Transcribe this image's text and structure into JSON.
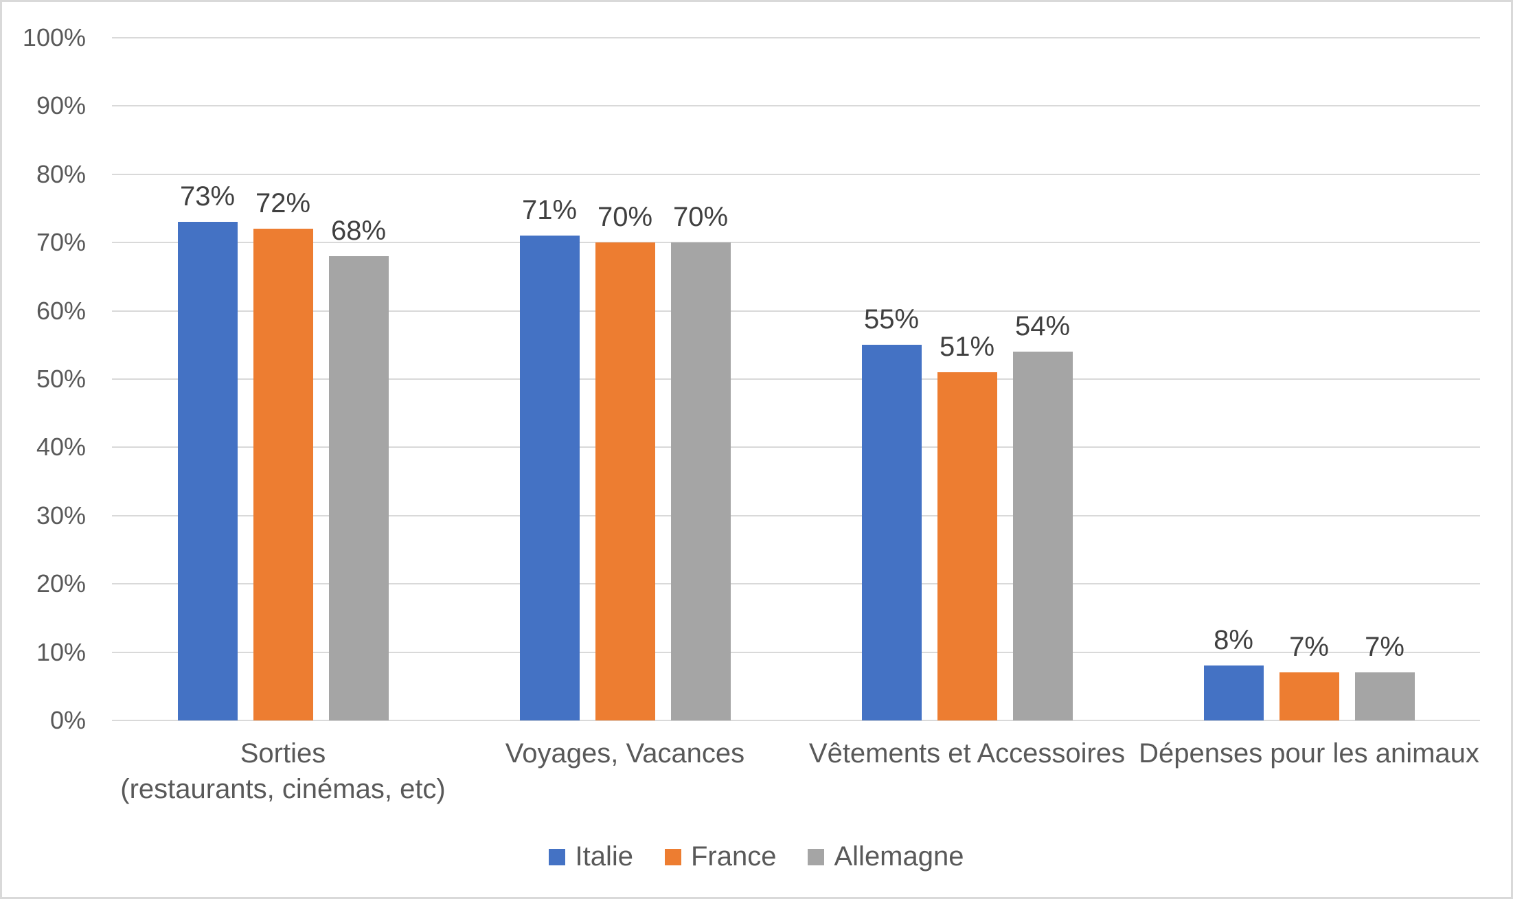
{
  "chart_data": {
    "type": "bar",
    "title": "",
    "xlabel": "",
    "ylabel": "",
    "categories": [
      {
        "lines": [
          "Sorties",
          "(restaurants, cinémas, etc)"
        ]
      },
      {
        "lines": [
          "Voyages, Vacances",
          ""
        ]
      },
      {
        "lines": [
          "Vêtements et Accessoires",
          ""
        ]
      },
      {
        "lines": [
          "Dépenses pour les animaux",
          ""
        ]
      }
    ],
    "series": [
      {
        "name": "Italie",
        "color": "#4472C4",
        "values": [
          73,
          71,
          55,
          8
        ],
        "labels": [
          "73%",
          "71%",
          "55%",
          "8%"
        ]
      },
      {
        "name": "France",
        "color": "#ED7D31",
        "values": [
          72,
          70,
          51,
          7
        ],
        "labels": [
          "72%",
          "70%",
          "51%",
          "7%"
        ]
      },
      {
        "name": "Allemagne",
        "color": "#A5A5A5",
        "values": [
          68,
          70,
          54,
          7
        ],
        "labels": [
          "68%",
          "70%",
          "54%",
          "7%"
        ]
      }
    ],
    "y_axis": {
      "min": 0,
      "max": 100,
      "tick_step": 10,
      "tick_labels": [
        "0%",
        "10%",
        "20%",
        "30%",
        "40%",
        "50%",
        "60%",
        "70%",
        "80%",
        "90%",
        "100%"
      ]
    },
    "grid": true,
    "legend_position": "bottom",
    "colors": {
      "grid_line": "#D9D9D9",
      "axis_text": "#595959",
      "data_label": "#404040",
      "background": "#FFFFFF",
      "frame_border": "#D9D9D9"
    }
  }
}
